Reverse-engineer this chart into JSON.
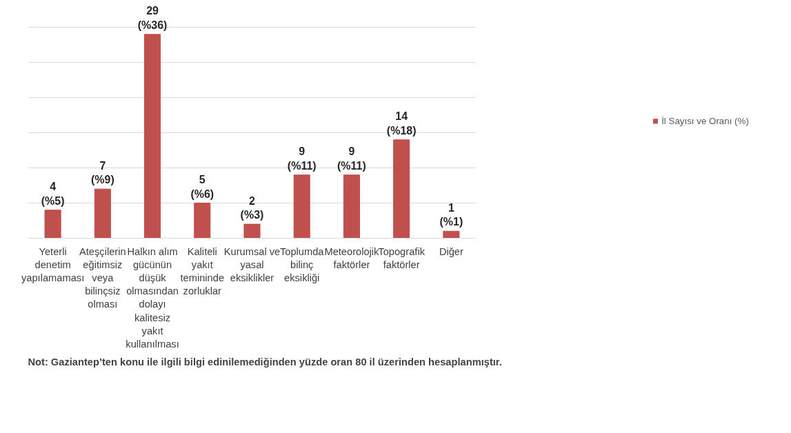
{
  "chart_data": {
    "type": "bar",
    "categories": [
      "Yeterli denetim yapılamaması",
      "Ateşçilerin eğitimsiz veya bilinçsiz olması",
      "Halkın alım gücünün düşük olmasından dolayı kalitesiz yakıt kullanılması",
      "Kaliteli yakıt temininde zorluklar",
      "Kurumsal ve yasal eksiklikler",
      "Toplumda bilinç eksikliği",
      "Meteorolojik faktörler",
      "Topografik faktörler",
      "Diğer"
    ],
    "series": [
      {
        "name": "İl Sayısı ve Oranı (%)",
        "color": "#c0504d",
        "values": [
          4,
          7,
          29,
          5,
          2,
          9,
          9,
          14,
          1
        ],
        "value_labels": [
          "4\n(%5)",
          "7\n(%9)",
          "29\n(%36)",
          "5\n(%6)",
          "2\n(%3)",
          "9\n(%11)",
          "9\n(%11)",
          "14\n(%18)",
          "1\n(%1)"
        ]
      }
    ],
    "tick_labels": "x",
    "grid": "y",
    "legend": "right",
    "annotations": [
      "Not: Gaziantep’ten konu ile ilgili bilgi edinilemediğinden yüzde oran 80 il üzerinden hesaplanmıştır."
    ]
  }
}
